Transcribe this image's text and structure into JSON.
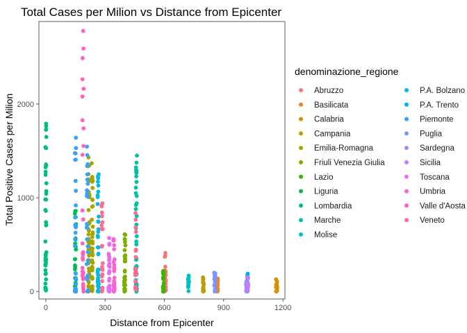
{
  "chart_data": {
    "type": "scatter",
    "title": "Total Cases per Milion vs Distance from Epicenter",
    "xlabel": "Distance from Epicenter",
    "ylabel": "Total Positive Cases per Milion",
    "xlim": [
      -35,
      1210
    ],
    "ylim": [
      -80,
      2880
    ],
    "x_ticks": [
      0,
      300,
      600,
      900,
      1200
    ],
    "y_ticks": [
      0,
      1000,
      2000
    ],
    "grid": false,
    "legend_title": "denominazione_regione",
    "legend_position": "right",
    "series": [
      {
        "name": "Abruzzo",
        "color": "#F8766D",
        "x": [
          605
        ],
        "y_range": [
          0,
          410
        ],
        "points": 30
      },
      {
        "name": "Basilicata",
        "color": "#EA8331",
        "x": [
          868
        ],
        "y_range": [
          0,
          140
        ],
        "points": 16
      },
      {
        "name": "Calabria",
        "color": "#D89000",
        "x": [
          1168
        ],
        "y_range": [
          0,
          130
        ],
        "points": 16
      },
      {
        "name": "Campania",
        "color": "#C09B00",
        "x": [
          798
        ],
        "y_range": [
          0,
          150
        ],
        "points": 16
      },
      {
        "name": "Emilia-Romagna",
        "color": "#A3A500",
        "x": [
          218,
          235
        ],
        "y_range": [
          0,
          1430
        ],
        "points": 90
      },
      {
        "name": "Friuli Venezia Giulia",
        "color": "#7CAE00",
        "x": [
          400
        ],
        "y_range": [
          0,
          610
        ],
        "points": 30
      },
      {
        "name": "Lazio",
        "color": "#39B600",
        "x": [
          595
        ],
        "y_range": [
          0,
          220
        ],
        "points": 24
      },
      {
        "name": "Liguria",
        "color": "#00BB4E",
        "x": [
          150
        ],
        "y_range": [
          0,
          860
        ],
        "points": 30
      },
      {
        "name": "Lombardia",
        "color": "#00BF7D",
        "x": [
          0
        ],
        "y_range": [
          0,
          1790
        ],
        "points": 45
      },
      {
        "name": "Marche",
        "color": "#00C1A3",
        "x": [
          458
        ],
        "y_range": [
          0,
          1450
        ],
        "points": 45
      },
      {
        "name": "Molise",
        "color": "#00BFC4",
        "x": [
          722
        ],
        "y_range": [
          0,
          170
        ],
        "points": 16
      },
      {
        "name": "P.A. Bolzano",
        "color": "#00BAE0",
        "x": [
          265
        ],
        "y_range": [
          0,
          1250
        ],
        "points": 40
      },
      {
        "name": "P.A. Trento",
        "color": "#00B0F6",
        "x": [
          1020
        ],
        "y_range": [
          0,
          190
        ],
        "points": 16
      },
      {
        "name": "Piemonte",
        "color": "#35A2FF",
        "x": [
          150,
          210
        ],
        "y_range": [
          0,
          1640
        ],
        "points": 50
      },
      {
        "name": "Puglia",
        "color": "#7997FF",
        "x": [
          855
        ],
        "y_range": [
          0,
          200
        ],
        "points": 16
      },
      {
        "name": "Sardegna",
        "color": "#9590FF",
        "x": [
          1015
        ],
        "y_range": [
          0,
          100
        ],
        "points": 14
      },
      {
        "name": "Sicilia",
        "color": "#C77CFF",
        "x": [
          1022
        ],
        "y_range": [
          0,
          150
        ],
        "points": 16
      },
      {
        "name": "Toscana",
        "color": "#E76BF3",
        "x": [
          320
        ],
        "y_range": [
          0,
          570
        ],
        "points": 30
      },
      {
        "name": "Umbria",
        "color": "#FA62DB",
        "x": [
          345
        ],
        "y_range": [
          0,
          560
        ],
        "points": 30
      },
      {
        "name": "Valle d'Aosta",
        "color": "#FF62BC",
        "x": [
          188
        ],
        "y_range": [
          0,
          2780
        ],
        "points": 30
      },
      {
        "name": "Veneto",
        "color": "#FF6C91",
        "x": [
          285,
          455
        ],
        "y_range": [
          0,
          940
        ],
        "points": 45
      }
    ]
  }
}
